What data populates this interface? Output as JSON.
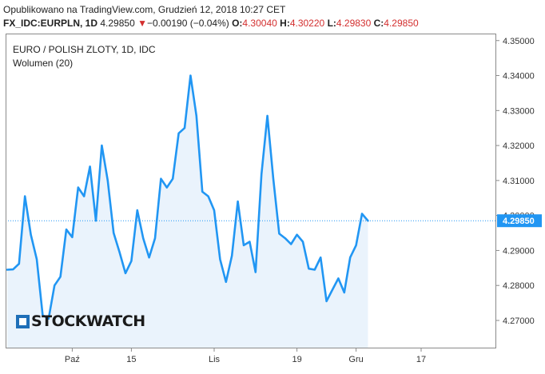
{
  "header": {
    "published": "Opublikowano na TradingView.com, Grudzień 12, 2018 10:27 CET",
    "symbol": "FX_IDC:EURPLN, 1D",
    "last": "4.29850",
    "arrow": "▼",
    "change": "−0.00190 (−0.04%)",
    "o_label": "O:",
    "o_value": "4.30040",
    "h_label": "H:",
    "h_value": "4.30220",
    "l_label": "L:",
    "l_value": "4.29830",
    "c_label": "C:",
    "c_value": "4.29850"
  },
  "legend": {
    "title": "EURO / POLISH ZLOTY, 1D, IDC",
    "volume": "Wolumen (20)"
  },
  "watermark": "STOCKWATCH",
  "colors": {
    "line": "#2196f3",
    "area": "#eaf3fc",
    "last_price_bg": "#2196f3",
    "negative": "#d32f2f"
  },
  "chart_data": {
    "type": "area",
    "title": "EURO / POLISH ZLOTY, 1D, IDC",
    "ylim": [
      4.262,
      4.352
    ],
    "y_ticks": [
      "4.27000",
      "4.28000",
      "4.29000",
      "4.30000",
      "4.31000",
      "4.32000",
      "4.33000",
      "4.34000",
      "4.35000"
    ],
    "x_ticks": [
      {
        "label": "Paź",
        "i": 11
      },
      {
        "label": "15",
        "i": 21
      },
      {
        "label": "Lis",
        "i": 35
      },
      {
        "label": "19",
        "i": 49
      },
      {
        "label": "Gru",
        "i": 59
      },
      {
        "label": "17",
        "i": 70
      }
    ],
    "last_price": 4.2985,
    "last_price_label": "4.29850",
    "x_count": 72,
    "values": [
      4.2845,
      4.2846,
      4.2862,
      4.3055,
      4.2945,
      4.2875,
      4.2715,
      4.2705,
      4.28,
      4.2825,
      4.296,
      4.2938,
      4.308,
      4.3055,
      4.314,
      4.2985,
      4.32,
      4.31,
      4.295,
      4.2895,
      4.2835,
      4.287,
      4.3015,
      4.2935,
      4.288,
      4.2935,
      4.3105,
      4.308,
      4.3105,
      4.3235,
      4.325,
      4.34,
      4.3285,
      4.3068,
      4.3055,
      4.3015,
      4.2875,
      4.281,
      4.2885,
      4.304,
      4.2915,
      4.2925,
      4.2838,
      4.3118,
      4.3285,
      4.3105,
      4.2948,
      4.2935,
      4.2918,
      4.2945,
      4.2925,
      4.2848,
      4.2845,
      4.288,
      4.2755,
      4.2788,
      4.282,
      4.278,
      4.288,
      4.2915,
      4.3005,
      4.2985
    ]
  }
}
